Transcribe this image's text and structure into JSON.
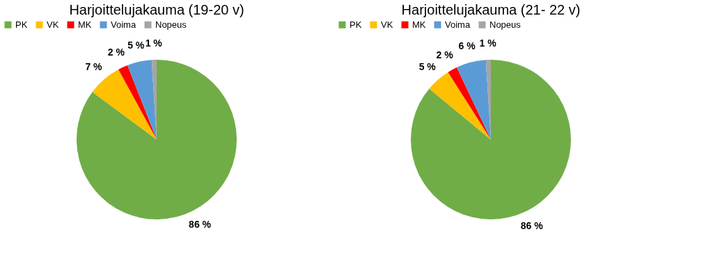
{
  "chart_data": [
    {
      "type": "pie",
      "title": "Harjoittelujakauma (19-20 v)",
      "categories": [
        "PK",
        "VK",
        "MK",
        "Voima",
        "Nopeus"
      ],
      "values": [
        86,
        7,
        2,
        5,
        1
      ],
      "colors": [
        "#70ad47",
        "#ffc000",
        "#ff0000",
        "#5b9bd5",
        "#a5a5a5"
      ],
      "value_labels": [
        "86 %",
        "7 %",
        "2 %",
        "5 %",
        "1 %"
      ],
      "legend": "top"
    },
    {
      "type": "pie",
      "title": "Harjoittelujakauma (21- 22 v)",
      "categories": [
        "PK",
        "VK",
        "MK",
        "Voima",
        "Nopeus"
      ],
      "values": [
        86,
        5,
        2,
        6,
        1
      ],
      "colors": [
        "#70ad47",
        "#ffc000",
        "#ff0000",
        "#5b9bd5",
        "#a5a5a5"
      ],
      "value_labels": [
        "86 %",
        "5 %",
        "2 %",
        "6 %",
        "1 %"
      ],
      "legend": "top"
    }
  ]
}
